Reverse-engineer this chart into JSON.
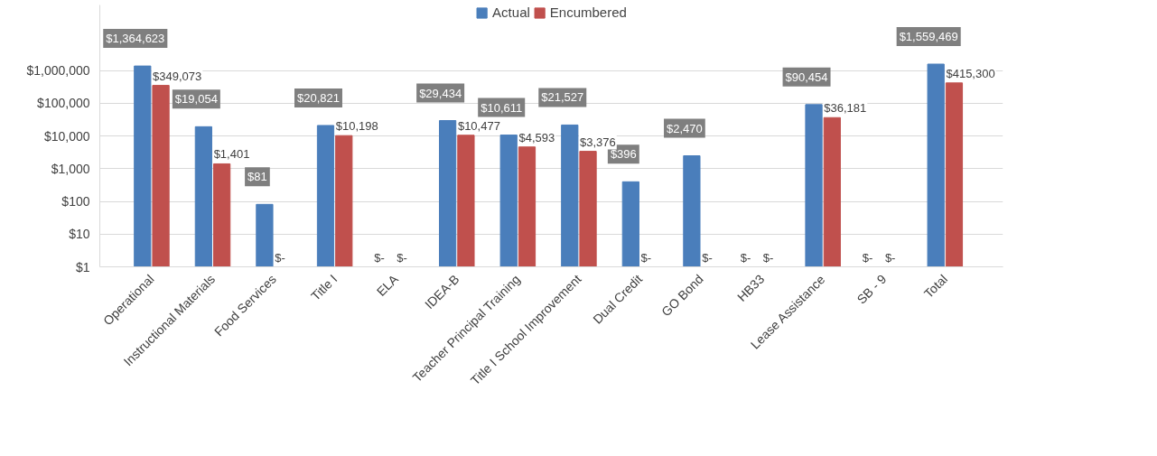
{
  "chart_data": {
    "type": "bar",
    "categories": [
      "Operational",
      "Instructional Materials",
      "Food Services",
      "Title I",
      "ELA",
      "IDEA-B",
      "Teacher Principal Training",
      "Title I School Improvement",
      "Dual Credit",
      "GO Bond",
      "HB33",
      "Lease Assistance",
      "SB - 9",
      "Total"
    ],
    "series": [
      {
        "name": "Actual",
        "color": "#4a7ebb",
        "values": [
          1364623,
          19054,
          81,
          20821,
          null,
          29434,
          10611,
          21527,
          396,
          2470,
          null,
          90454,
          null,
          1559469
        ],
        "value_labels": [
          "$1,364,623",
          "$19,054",
          "$81",
          "$20,821",
          "$-",
          "$29,434",
          "$10,611",
          "$21,527",
          "$396",
          "$2,470",
          "$-",
          "$90,454",
          "$-",
          "$1,559,469"
        ]
      },
      {
        "name": "Encumbered",
        "color": "#c0504d",
        "values": [
          349073,
          1401,
          null,
          10198,
          null,
          10477,
          4593,
          3376,
          null,
          null,
          null,
          36181,
          null,
          415300
        ],
        "value_labels": [
          "$349,073",
          "$1,401",
          "$-",
          "$10,198",
          "$-",
          "$10,477",
          "$4,593",
          "$3,376",
          "$-",
          "$-",
          "$-",
          "$36,181",
          "$-",
          "$415,300"
        ]
      }
    ],
    "log": true,
    "ylim": [
      1,
      100000000
    ],
    "yticks": [
      {
        "value": 1,
        "label": "$1"
      },
      {
        "value": 10,
        "label": "$10"
      },
      {
        "value": 100,
        "label": "$100"
      },
      {
        "value": 1000,
        "label": "$1,000"
      },
      {
        "value": 10000,
        "label": "$10,000"
      },
      {
        "value": 100000,
        "label": "$100,000"
      },
      {
        "value": 1000000,
        "label": "$1,000,000"
      }
    ],
    "grid": "y",
    "legend": "top"
  }
}
